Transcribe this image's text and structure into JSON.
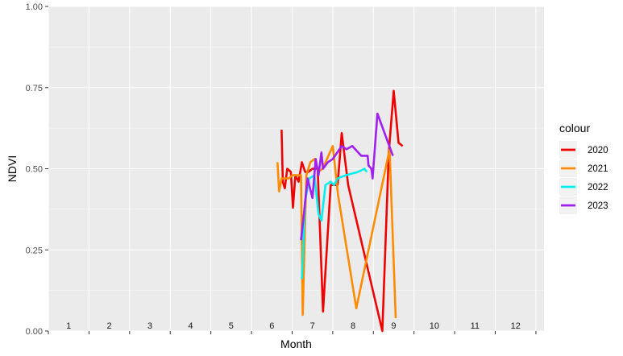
{
  "chart_data": {
    "type": "line",
    "xlabel": "Month",
    "ylabel": "NDVI",
    "xlim": [
      0.5,
      12.7
    ],
    "ylim": [
      0,
      1
    ],
    "y_ticks": [
      "0.00",
      "0.25",
      "0.50",
      "0.75",
      "1.00"
    ],
    "month_labels": [
      "1",
      "2",
      "3",
      "4",
      "5",
      "6",
      "7",
      "8",
      "9",
      "10",
      "11",
      "12"
    ],
    "grid": true,
    "legend_title": "colour",
    "legend_position": "right",
    "series": [
      {
        "name": "2020",
        "color": "#ee0000",
        "points": [
          [
            6.24,
            0.62
          ],
          [
            6.27,
            0.46
          ],
          [
            6.32,
            0.44
          ],
          [
            6.38,
            0.5
          ],
          [
            6.47,
            0.49
          ],
          [
            6.52,
            0.38
          ],
          [
            6.58,
            0.48
          ],
          [
            6.66,
            0.46
          ],
          [
            6.74,
            0.52
          ],
          [
            6.82,
            0.49
          ],
          [
            6.9,
            0.49
          ],
          [
            7.0,
            0.5
          ],
          [
            7.08,
            0.5
          ],
          [
            7.13,
            0.5
          ],
          [
            7.26,
            0.06
          ],
          [
            7.45,
            0.45
          ],
          [
            7.62,
            0.45
          ],
          [
            7.72,
            0.61
          ],
          [
            7.88,
            0.45
          ],
          [
            8.72,
            0.0
          ],
          [
            8.88,
            0.55
          ],
          [
            9.0,
            0.74
          ],
          [
            9.12,
            0.58
          ],
          [
            9.22,
            0.57
          ]
        ]
      },
      {
        "name": "2021",
        "color": "#ff8c00",
        "points": [
          [
            6.14,
            0.52
          ],
          [
            6.18,
            0.43
          ],
          [
            6.24,
            0.47
          ],
          [
            6.32,
            0.47
          ],
          [
            6.42,
            0.47
          ],
          [
            6.5,
            0.48
          ],
          [
            6.58,
            0.48
          ],
          [
            6.72,
            0.48
          ],
          [
            6.76,
            0.05
          ],
          [
            6.85,
            0.48
          ],
          [
            6.95,
            0.52
          ],
          [
            7.05,
            0.53
          ],
          [
            7.15,
            0.49
          ],
          [
            7.25,
            0.5
          ],
          [
            7.5,
            0.57
          ],
          [
            7.63,
            0.42
          ],
          [
            8.08,
            0.07
          ],
          [
            8.9,
            0.56
          ],
          [
            9.05,
            0.04
          ]
        ]
      },
      {
        "name": "2022",
        "color": "#00eeee",
        "points": [
          [
            6.74,
            0.16
          ],
          [
            6.82,
            0.4
          ],
          [
            6.92,
            0.47
          ],
          [
            7.05,
            0.48
          ],
          [
            7.15,
            0.36
          ],
          [
            7.22,
            0.34
          ],
          [
            7.32,
            0.45
          ],
          [
            7.45,
            0.46
          ],
          [
            7.53,
            0.45
          ],
          [
            7.62,
            0.47
          ],
          [
            7.82,
            0.48
          ],
          [
            8.12,
            0.49
          ],
          [
            8.28,
            0.5
          ],
          [
            8.34,
            0.49
          ]
        ]
      },
      {
        "name": "2023",
        "color": "#a020f0",
        "points": [
          [
            6.72,
            0.28
          ],
          [
            6.78,
            0.35
          ],
          [
            6.88,
            0.47
          ],
          [
            7.0,
            0.41
          ],
          [
            7.08,
            0.53
          ],
          [
            7.15,
            0.48
          ],
          [
            7.22,
            0.55
          ],
          [
            7.26,
            0.5
          ],
          [
            7.38,
            0.52
          ],
          [
            7.5,
            0.53
          ],
          [
            7.72,
            0.57
          ],
          [
            7.84,
            0.56
          ],
          [
            7.98,
            0.57
          ],
          [
            8.2,
            0.54
          ],
          [
            8.36,
            0.54
          ],
          [
            8.38,
            0.51
          ],
          [
            8.45,
            0.5
          ],
          [
            8.48,
            0.47
          ],
          [
            8.6,
            0.67
          ],
          [
            8.98,
            0.54
          ]
        ]
      }
    ]
  }
}
